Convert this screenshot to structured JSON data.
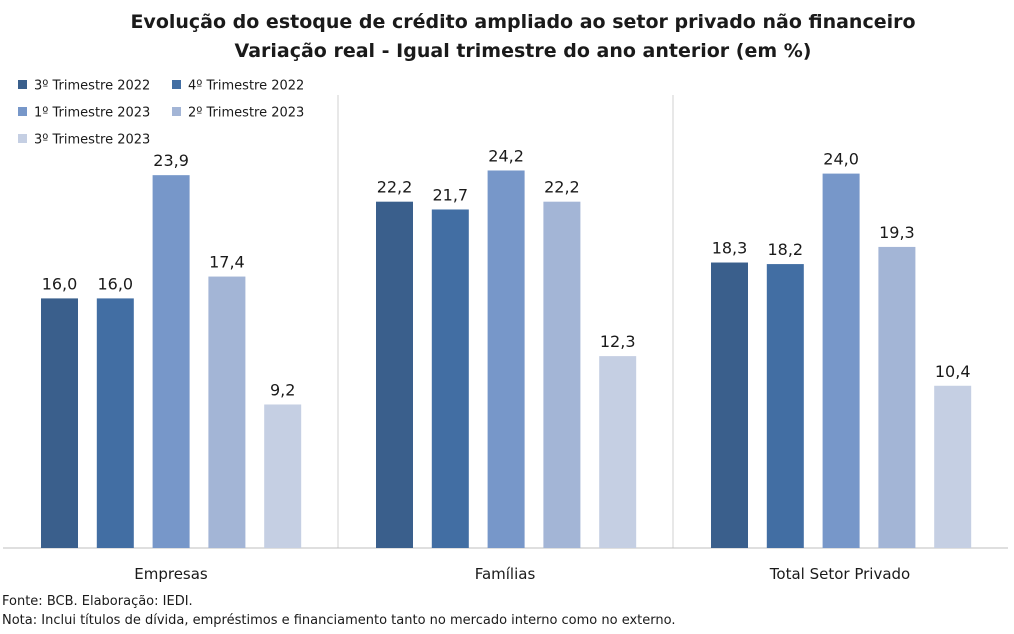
{
  "chart_data": {
    "type": "bar",
    "title": "Evolução do estoque de crédito ampliado ao setor privado não financeiro",
    "subtitle": "Variação real - Igual trimestre do ano anterior (em %)",
    "categories": [
      "Empresas",
      "Famílias",
      "Total Setor Privado"
    ],
    "series": [
      {
        "name": "3º Trimestre 2022",
        "color": "#3a5f8c",
        "values": [
          16.0,
          22.2,
          18.3
        ],
        "labels": [
          "16,0",
          "22,2",
          "18,3"
        ]
      },
      {
        "name": "4º Trimestre 2022",
        "color": "#426ea3",
        "values": [
          16.0,
          21.7,
          18.2
        ],
        "labels": [
          "16,0",
          "21,7",
          "18,2"
        ]
      },
      {
        "name": "1º Trimestre 2023",
        "color": "#7797c9",
        "values": [
          23.9,
          24.2,
          24.0
        ],
        "labels": [
          "23,9",
          "24,2",
          "24,0"
        ]
      },
      {
        "name": "2º Trimestre 2023",
        "color": "#a3b5d6",
        "values": [
          17.4,
          22.2,
          19.3
        ],
        "labels": [
          "17,4",
          "22,2",
          "19,3"
        ]
      },
      {
        "name": "3º Trimestre 2023",
        "color": "#c5cfe3",
        "values": [
          9.2,
          12.3,
          10.4
        ],
        "labels": [
          "9,2",
          "12,3",
          "10,4"
        ]
      }
    ],
    "ylim": [
      0,
      30
    ],
    "grid": false,
    "legend": "top-left",
    "xlabel": "",
    "ylabel": ""
  },
  "footer": {
    "source": "Fonte: BCB. Elaboração: IEDI.",
    "note": "Nota: Inclui títulos de dívida, empréstimos e financiamento tanto no mercado interno como no externo."
  }
}
